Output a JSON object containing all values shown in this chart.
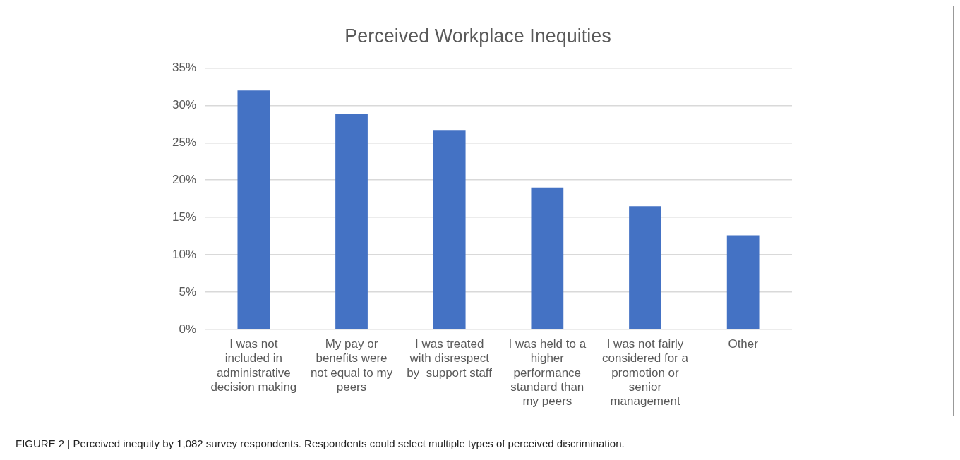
{
  "chart_data": {
    "type": "bar",
    "title": "Perceived Workplace Inequities",
    "categories": [
      "I was not included in administrative decision making",
      "My pay or benefits were not equal to my peers",
      "I was treated with disrespect by  support staff",
      "I was held to a higher performance standard than my peers",
      "I was not fairly considered for a promotion or senior management",
      "Other"
    ],
    "values": [
      32,
      28.9,
      26.7,
      19,
      16.5,
      12.6
    ],
    "color": "#4472c4",
    "ylim": [
      0,
      35
    ],
    "yticks": [
      {
        "value": 0,
        "label": "0%"
      },
      {
        "value": 5,
        "label": "5%"
      },
      {
        "value": 10,
        "label": "10%"
      },
      {
        "value": 15,
        "label": "15%"
      },
      {
        "value": 20,
        "label": "20%"
      },
      {
        "value": 25,
        "label": "25%"
      },
      {
        "value": 30,
        "label": "30%"
      },
      {
        "value": 35,
        "label": "35%"
      }
    ],
    "grid": "y",
    "legend": false,
    "annotations": [
      "FIGURE 2 | Perceived inequity by 1,082 survey respondents. Respondents could select multiple types of perceived discrimination."
    ]
  }
}
